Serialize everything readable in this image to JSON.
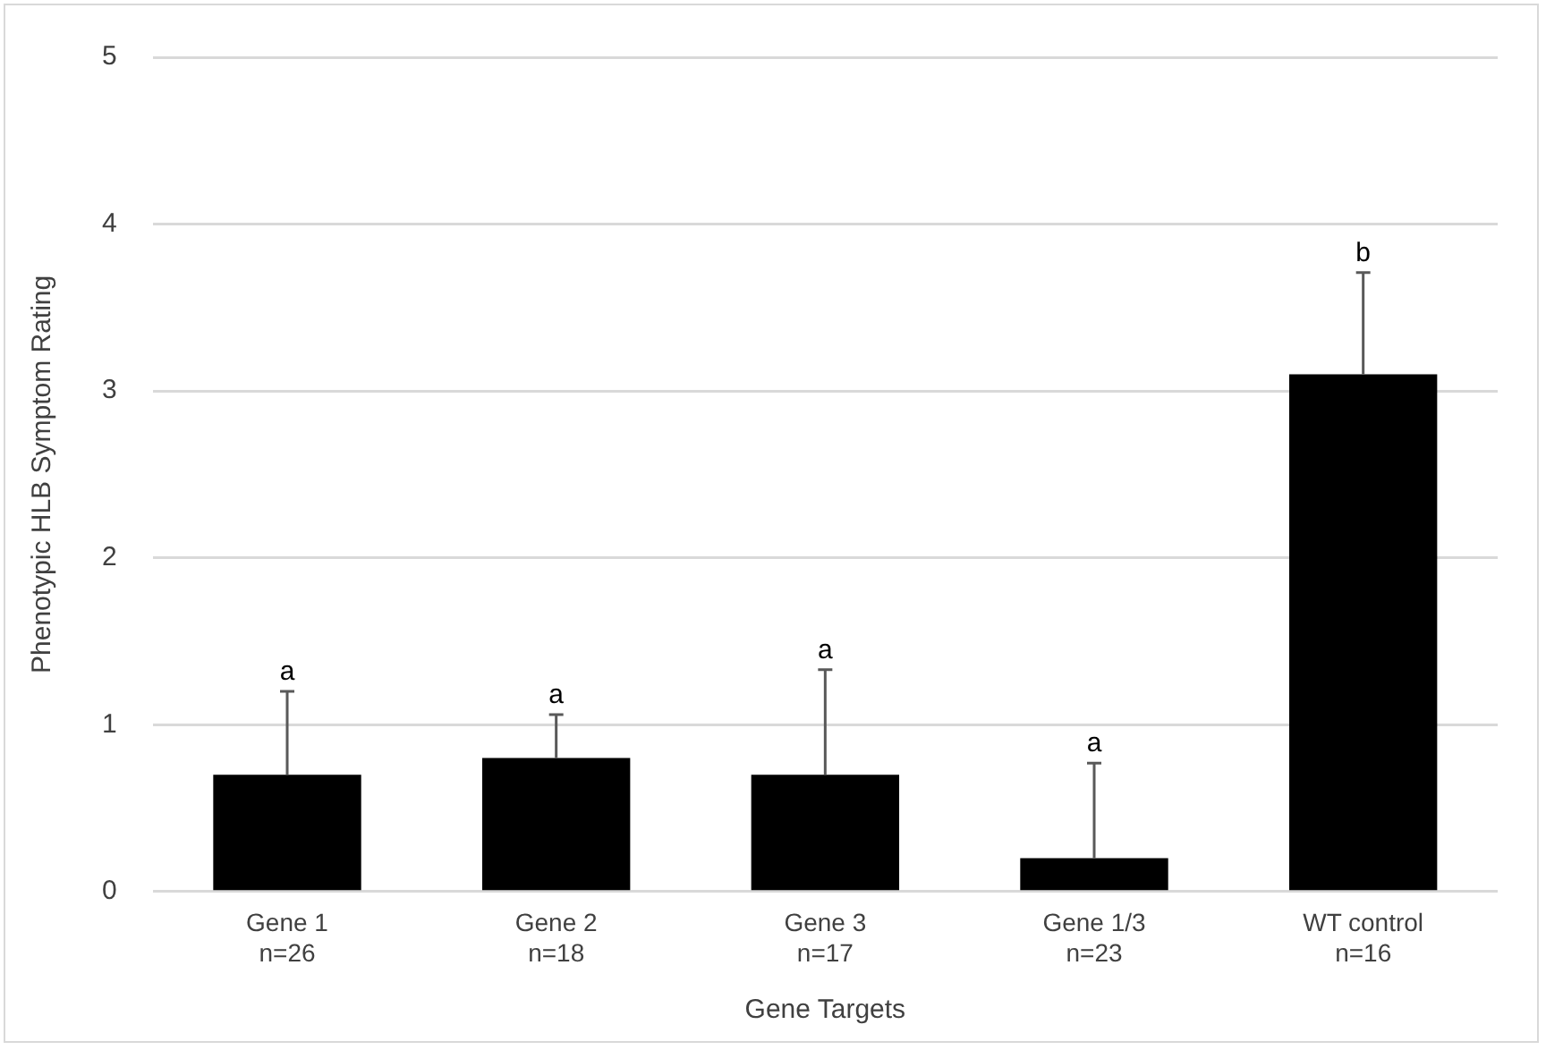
{
  "chart_data": {
    "type": "bar",
    "xlabel": "Gene Targets",
    "ylabel": "Phenotypic HLB Symptom Rating",
    "categories": [
      "Gene 1\nn=26",
      "Gene 2\nn=18",
      "Gene 3\nn=17",
      "Gene 1/3\nn=23",
      "WT control\nn=16"
    ],
    "values": [
      0.7,
      0.8,
      0.7,
      0.2,
      3.1
    ],
    "errors": [
      [
        0.7,
        1.2
      ],
      [
        0.8,
        1.06
      ],
      [
        0.7,
        1.33
      ],
      [
        0.2,
        0.77
      ],
      [
        3.1,
        3.71
      ]
    ],
    "color": "#000000",
    "ylim": [
      0,
      5
    ],
    "yticks": [
      0,
      1,
      2,
      3,
      4,
      5
    ],
    "grid": "y",
    "legend": false,
    "annotations": [
      {
        "text": "a",
        "x": "Gene 1\nn=26",
        "y": 1.2
      },
      {
        "text": "a",
        "x": "Gene 2\nn=18",
        "y": 1.06
      },
      {
        "text": "a",
        "x": "Gene 3\nn=17",
        "y": 1.33
      },
      {
        "text": "a",
        "x": "Gene 1/3\nn=23",
        "y": 0.77
      },
      {
        "text": "b",
        "x": "WT control\nn=16",
        "y": 3.71
      }
    ]
  }
}
